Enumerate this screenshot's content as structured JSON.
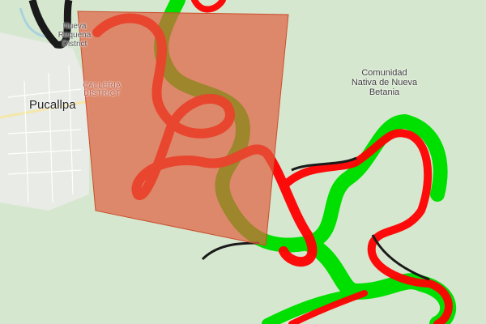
{
  "map": {
    "labels": {
      "city": "Pucallpa",
      "district_north": "Nueva Requena District",
      "district_center": "CALLERIA DISTRICT",
      "community": "Comunidad Nativa de Nueva Betania"
    },
    "layers": {
      "overlay_polygon_color": "#e0603f",
      "river_layer_a_color": "#ff0000",
      "river_layer_b_color": "#00e000",
      "overlap_color": "#1a1a1a",
      "basemap_land": "#d6e7cf",
      "basemap_urban": "#e9ebe6",
      "river_water": "#aad3df"
    }
  }
}
